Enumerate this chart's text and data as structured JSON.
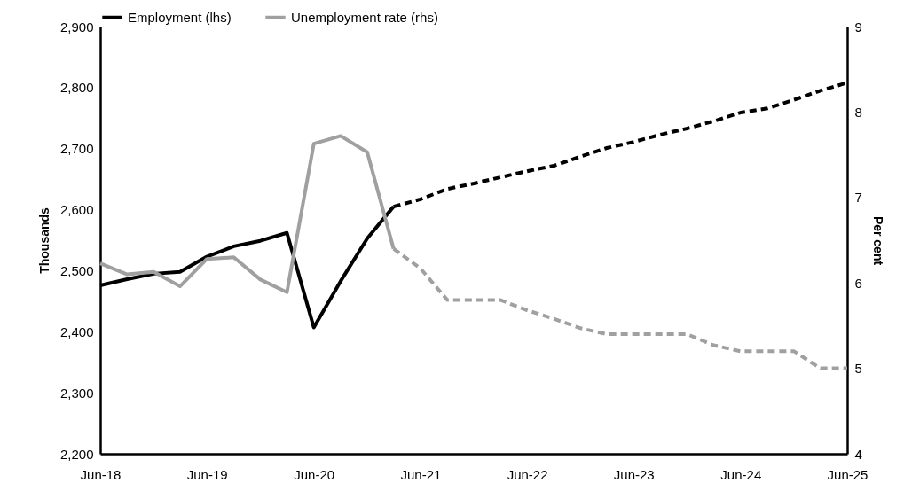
{
  "chart_data": {
    "type": "line",
    "x": [
      "2018-06",
      "2018-09",
      "2018-12",
      "2019-03",
      "2019-06",
      "2019-09",
      "2019-12",
      "2020-03",
      "2020-06",
      "2020-09",
      "2020-12",
      "2021-03",
      "2021-06",
      "2021-09",
      "2021-12",
      "2022-03",
      "2022-06",
      "2022-09",
      "2022-12",
      "2023-03",
      "2023-06",
      "2023-09",
      "2023-12",
      "2024-03",
      "2024-06",
      "2024-09",
      "2024-12",
      "2025-03",
      "2025-06"
    ],
    "series": [
      {
        "name": "Employment (lhs)",
        "color": "#000000",
        "line_style": "solid",
        "values": [
          2476,
          2486,
          2495,
          2498,
          2523,
          2540,
          2549,
          2562,
          2407,
          2483,
          2553,
          2605,
          null,
          null,
          null,
          null,
          null,
          null,
          null,
          null,
          null,
          null,
          null,
          null,
          null,
          null,
          null,
          null,
          null
        ]
      },
      {
        "name": "Unemployment rate (rhs)",
        "color": "#a0a0a0",
        "axis": "y2",
        "line_style": "solid",
        "values": [
          6.23,
          6.1,
          6.13,
          5.96,
          6.28,
          6.3,
          6.04,
          5.89,
          7.63,
          7.72,
          7.53,
          6.4,
          null,
          null,
          null,
          null,
          null,
          null,
          null,
          null,
          null,
          null,
          null,
          null,
          null,
          null,
          null,
          null,
          null
        ]
      },
      {
        "color": "#000000",
        "line_style": "dashed",
        "values": [
          null,
          null,
          null,
          null,
          null,
          null,
          null,
          null,
          null,
          null,
          null,
          2605,
          2617,
          2634,
          2643,
          2653,
          2663,
          2672,
          2687,
          2701,
          2711,
          2723,
          2733,
          2745,
          2759,
          2766,
          2780,
          2795,
          2808
        ]
      },
      {
        "color": "#a0a0a0",
        "axis": "y2",
        "line_style": "dashed",
        "values": [
          null,
          null,
          null,
          null,
          null,
          null,
          null,
          null,
          null,
          null,
          null,
          6.4,
          6.17,
          5.8,
          5.8,
          5.8,
          5.68,
          5.58,
          5.47,
          5.4,
          5.4,
          5.4,
          5.4,
          5.27,
          5.2,
          5.2,
          5.2,
          5.0,
          5.0
        ]
      }
    ],
    "ylabel": "Thousands",
    "y2label": "Per cent",
    "xlim": [
      "2018-06",
      "2025-06"
    ],
    "xticks": [
      {
        "value": "2018-06",
        "label": "Jun-18"
      },
      {
        "value": "2019-06",
        "label": "Jun-19"
      },
      {
        "value": "2020-06",
        "label": "Jun-20"
      },
      {
        "value": "2021-06",
        "label": "Jun-21"
      },
      {
        "value": "2022-06",
        "label": "Jun-22"
      },
      {
        "value": "2023-06",
        "label": "Jun-23"
      },
      {
        "value": "2024-06",
        "label": "Jun-24"
      },
      {
        "value": "2025-06",
        "label": "Jun-25"
      }
    ],
    "ylim": [
      2200,
      2900
    ],
    "yticks": [
      {
        "value": 2200,
        "label": "2,200"
      },
      {
        "value": 2300,
        "label": "2,300"
      },
      {
        "value": 2400,
        "label": "2,400"
      },
      {
        "value": 2500,
        "label": "2,500"
      },
      {
        "value": 2600,
        "label": "2,600"
      },
      {
        "value": 2700,
        "label": "2,700"
      },
      {
        "value": 2800,
        "label": "2,800"
      },
      {
        "value": 2900,
        "label": "2,900"
      }
    ],
    "y2lim": [
      4,
      9
    ],
    "y2ticks": [
      4,
      5,
      6,
      7,
      8,
      9
    ],
    "grid": false,
    "legend": "top",
    "marker": "none"
  }
}
